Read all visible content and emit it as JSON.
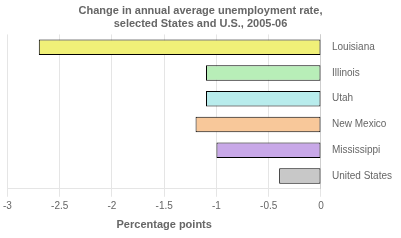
{
  "chart_data": {
    "type": "bar",
    "orientation": "horizontal",
    "title": "Change in annual average unemployment rate,\nselected States and U.S., 2005-06",
    "categories": [
      "Louisiana",
      "Illinois",
      "Utah",
      "New Mexico",
      "Mississippi",
      "United States"
    ],
    "values": [
      -2.7,
      -1.1,
      -1.1,
      -1.2,
      -1.0,
      -0.4
    ],
    "colors": [
      "#f0f078",
      "#b8eeb8",
      "#b8ecec",
      "#f8c89a",
      "#c8a8e8",
      "#c8c8c8"
    ],
    "xlabel": "Percentage points",
    "xlim": [
      -3,
      0
    ],
    "xticks": [
      -3,
      -2.5,
      -2,
      -1.5,
      -1,
      -0.5,
      0
    ],
    "grid": true
  }
}
